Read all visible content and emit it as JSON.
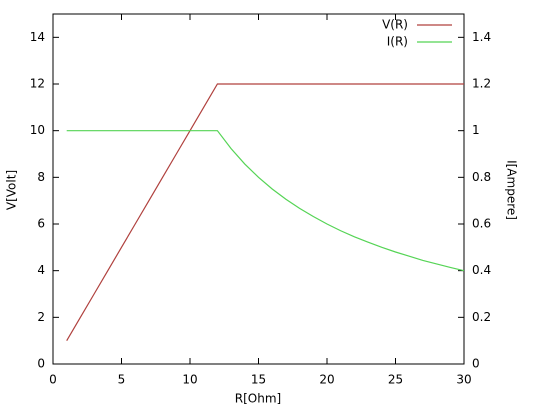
{
  "chart_data": {
    "type": "line",
    "xlabel": "R[Ohm]",
    "ylabel": "V[Volt]",
    "y2label": "I[Ampere]",
    "x": [
      1,
      2,
      3,
      4,
      5,
      6,
      7,
      8,
      9,
      10,
      11,
      12,
      13,
      14,
      15,
      16,
      17,
      18,
      19,
      20,
      21,
      22,
      23,
      24,
      25,
      26,
      27,
      28,
      29,
      30
    ],
    "series": [
      {
        "name": "V(R)",
        "color": "#b0413e",
        "values": [
          1,
          2,
          3,
          4,
          5,
          6,
          7,
          8,
          9,
          10,
          11,
          12,
          12,
          12,
          12,
          12,
          12,
          12,
          12,
          12,
          12,
          12,
          12,
          12,
          12,
          12,
          12,
          12,
          12,
          12
        ]
      },
      {
        "name": "I(R)",
        "color": "#55d455",
        "axis": "y2",
        "values": [
          1,
          1,
          1,
          1,
          1,
          1,
          1,
          1,
          1,
          1,
          1,
          1,
          0.923,
          0.857,
          0.8,
          0.75,
          0.706,
          0.667,
          0.632,
          0.6,
          0.571,
          0.545,
          0.522,
          0.5,
          0.48,
          0.462,
          0.444,
          0.429,
          0.414,
          0.4
        ]
      }
    ],
    "xlim": [
      0,
      30
    ],
    "xticks": [
      0,
      5,
      10,
      15,
      20,
      25,
      30
    ],
    "ylim": [
      0,
      15
    ],
    "yticks": [
      0,
      2,
      4,
      6,
      8,
      10,
      12,
      14
    ],
    "y2lim": [
      0,
      1.5
    ],
    "y2ticks": [
      0,
      0.2,
      0.4,
      0.6,
      0.8,
      1,
      1.2,
      1.4
    ],
    "legend": "top-right",
    "grid": false
  }
}
